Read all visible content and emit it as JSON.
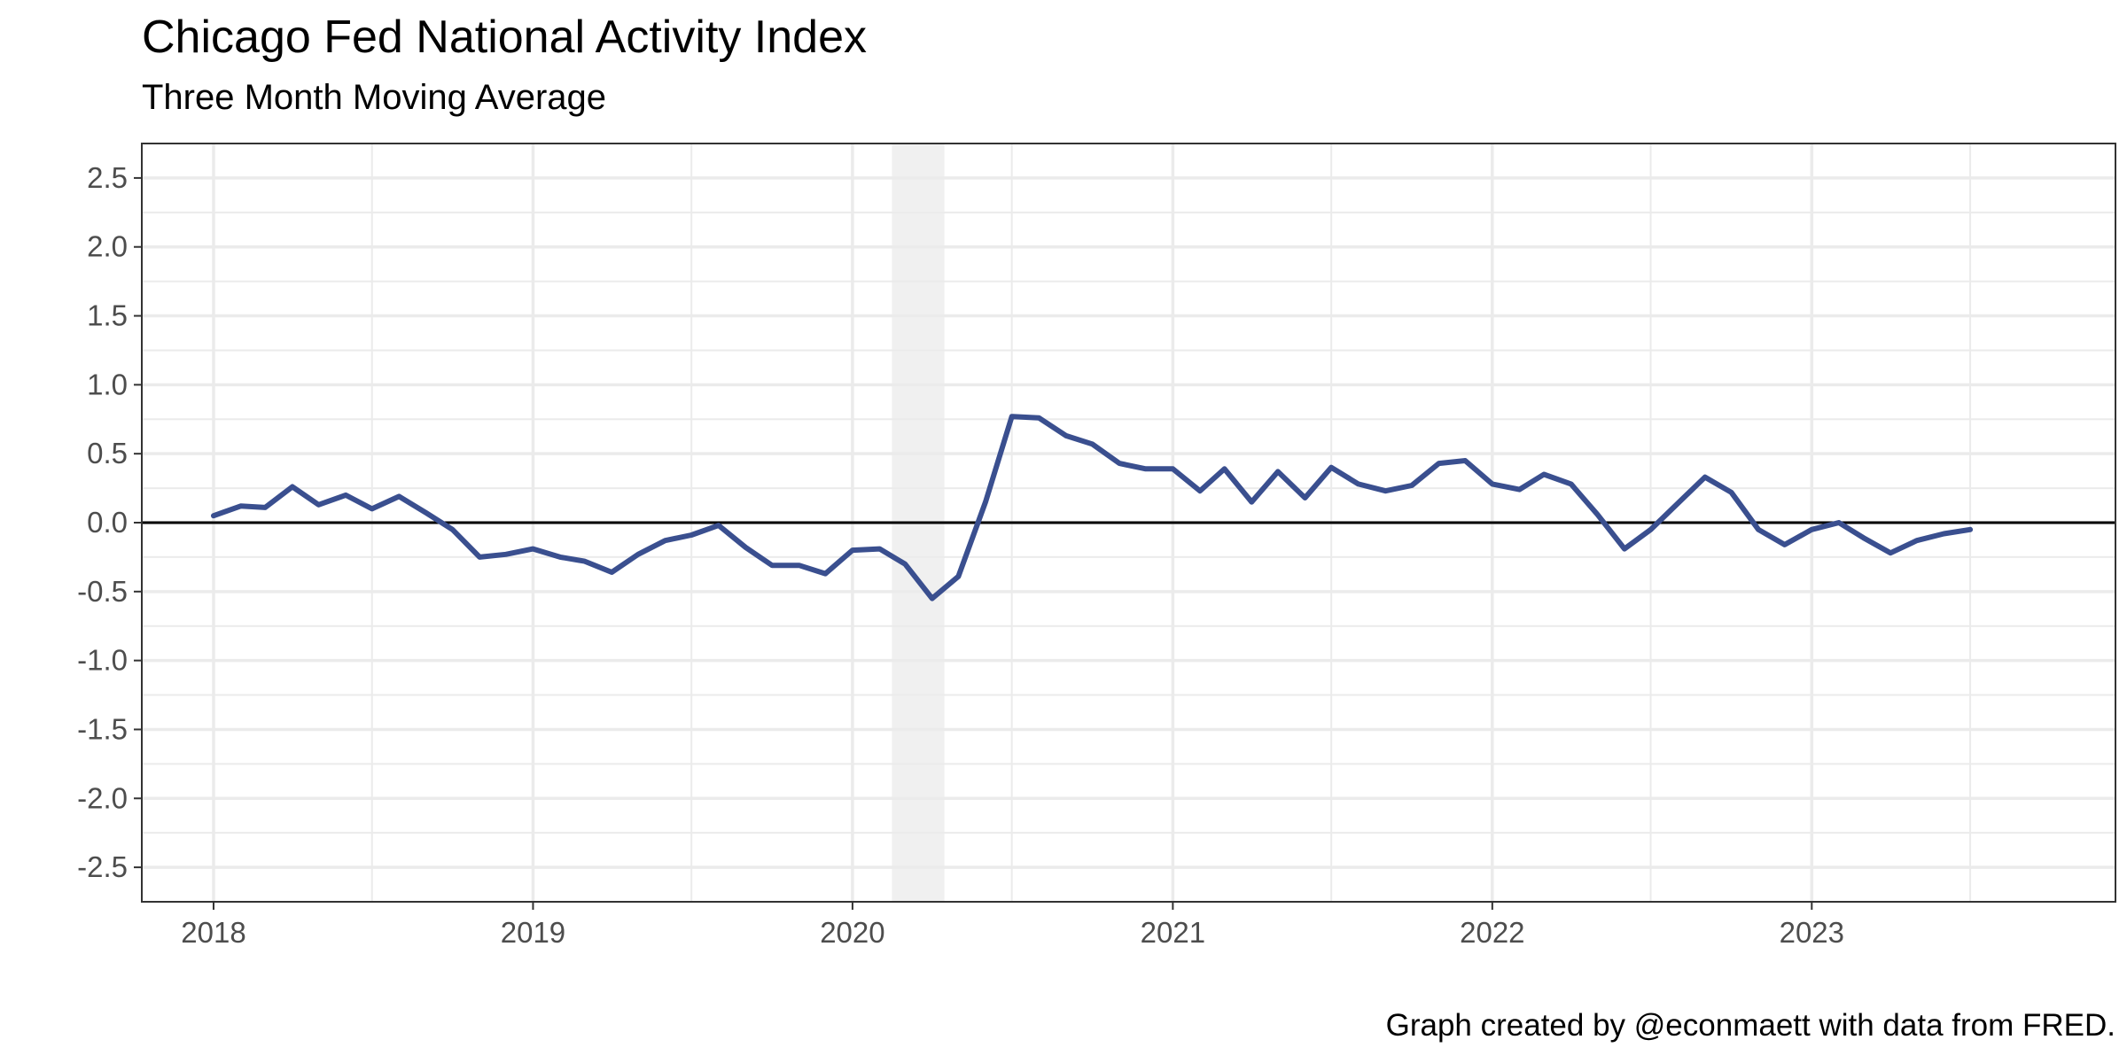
{
  "chart_data": {
    "type": "line",
    "title": "Chicago Fed National Activity Index",
    "subtitle": "Three Month Moving Average",
    "caption": "Graph created by @econmaett with data from FRED.",
    "xlabel": "",
    "ylabel": "",
    "x_ticks": [
      "2018",
      "2019",
      "2020",
      "2021",
      "2022",
      "2023"
    ],
    "y_ticks": [
      "2.5",
      "2.0",
      "1.5",
      "1.0",
      "0.5",
      "0.0",
      "-0.5",
      "-1.0",
      "-1.5",
      "-2.0",
      "-2.5"
    ],
    "xlim": [
      "2017-10-11",
      "2023-12-14"
    ],
    "ylim": [
      -2.75,
      2.75
    ],
    "grid": true,
    "reference_line_y": 0,
    "recession_band": {
      "start": "2020-02-15",
      "end": "2020-04-15",
      "color": "#f0f0f0"
    },
    "series": [
      {
        "color": "#3a4f8f",
        "x": [
          "2018-01-01",
          "2018-02-01",
          "2018-03-01",
          "2018-04-01",
          "2018-05-01",
          "2018-06-01",
          "2018-07-01",
          "2018-08-01",
          "2018-09-01",
          "2018-10-01",
          "2018-11-01",
          "2018-12-01",
          "2019-01-01",
          "2019-02-01",
          "2019-03-01",
          "2019-04-01",
          "2019-05-01",
          "2019-06-01",
          "2019-07-01",
          "2019-08-01",
          "2019-09-01",
          "2019-10-01",
          "2019-11-01",
          "2019-12-01",
          "2020-01-01",
          "2020-02-01",
          "2020-03-01",
          "2020-04-01",
          "2020-05-01",
          "2020-06-01",
          "2020-07-01",
          "2020-08-01",
          "2020-09-01",
          "2020-10-01",
          "2020-11-01",
          "2020-12-01",
          "2021-01-01",
          "2021-02-01",
          "2021-03-01",
          "2021-04-01",
          "2021-05-01",
          "2021-06-01",
          "2021-07-01",
          "2021-08-01",
          "2021-09-01",
          "2021-10-01",
          "2021-11-01",
          "2021-12-01",
          "2022-01-01",
          "2022-02-01",
          "2022-03-01",
          "2022-04-01",
          "2022-05-01",
          "2022-06-01",
          "2022-07-01",
          "2022-08-01",
          "2022-09-01",
          "2022-10-01",
          "2022-11-01",
          "2022-12-01",
          "2023-01-01",
          "2023-02-01",
          "2023-03-01",
          "2023-04-01",
          "2023-05-01",
          "2023-06-01",
          "2023-07-01"
        ],
        "values": [
          0.05,
          0.12,
          0.11,
          0.26,
          0.13,
          0.2,
          0.1,
          0.19,
          0.07,
          -0.05,
          -0.25,
          -0.23,
          -0.19,
          -0.25,
          -0.28,
          -0.36,
          -0.23,
          -0.13,
          -0.09,
          -0.02,
          -0.18,
          -0.31,
          -0.31,
          -0.37,
          -0.2,
          -0.19,
          -0.3,
          -0.55,
          -0.39,
          0.15,
          0.77,
          0.76,
          0.63,
          0.57,
          0.43,
          0.39,
          0.39,
          0.23,
          0.39,
          0.15,
          0.37,
          0.18,
          0.4,
          0.28,
          0.23,
          0.27,
          0.43,
          0.45,
          0.28,
          0.24,
          0.35,
          0.28,
          0.06,
          -0.19,
          -0.05,
          0.14,
          0.33,
          0.22,
          -0.05,
          -0.16,
          -0.05,
          0.0,
          -0.11,
          -0.22,
          -0.13,
          -0.08,
          -0.05
        ]
      }
    ]
  }
}
